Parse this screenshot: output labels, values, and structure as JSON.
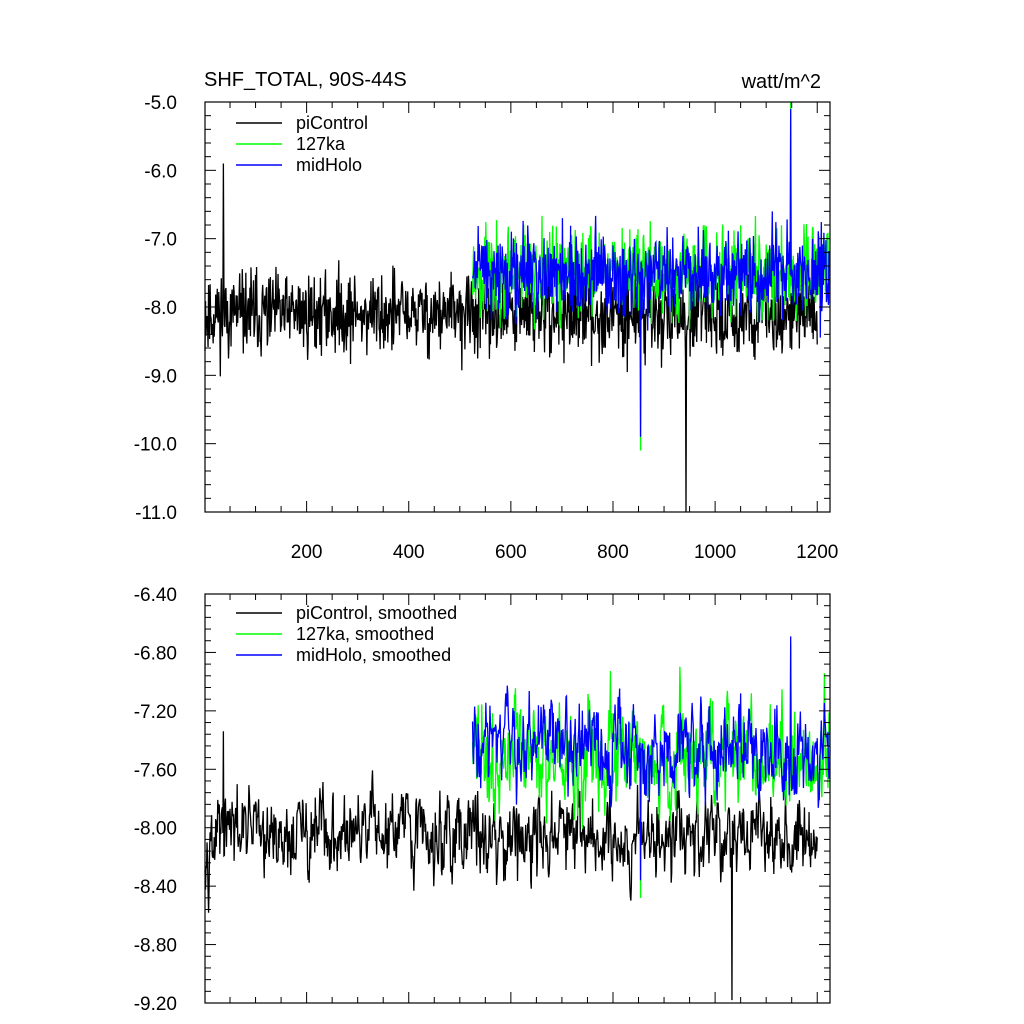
{
  "chart_data": [
    {
      "type": "line",
      "title": "SHF_TOTAL, 90S-44S",
      "units": "watt/m^2",
      "xlim": [
        1,
        1225
      ],
      "ylim": [
        -11.0,
        -5.0
      ],
      "xticks": [
        200,
        400,
        600,
        800,
        1000,
        1200
      ],
      "xtick_labels": [
        "200",
        "400",
        "600",
        "800",
        "1000",
        "1200"
      ],
      "yticks": [
        -5.0,
        -6.0,
        -7.0,
        -8.0,
        -9.0,
        -10.0,
        -11.0
      ],
      "ytick_labels": [
        "-5.0",
        "-6.0",
        "-7.0",
        "-8.0",
        "-9.0",
        "-10.0",
        "-11.0"
      ],
      "grid": false,
      "legend_position": "top-left",
      "series": [
        {
          "name": "piControl",
          "color": "#000000",
          "x_start": 1,
          "x_end": 1200,
          "mean": -8.1,
          "amplitude": 0.55,
          "min": -11.0,
          "max": -5.9
        },
        {
          "name": "127ka",
          "color": "#00ff00",
          "x_start": 525,
          "x_end": 1225,
          "mean": -7.5,
          "amplitude": 0.6,
          "min": -10.1,
          "max": -5.0
        },
        {
          "name": "midHolo",
          "color": "#0000ff",
          "x_start": 525,
          "x_end": 1225,
          "mean": -7.5,
          "amplitude": 0.55,
          "min": -9.9,
          "max": -5.1
        }
      ]
    },
    {
      "type": "line",
      "title": "",
      "xlim": [
        1,
        1225
      ],
      "ylim": [
        -9.2,
        -6.4
      ],
      "xticks": [
        200,
        400,
        600,
        800,
        1000,
        1200
      ],
      "yticks": [
        -6.4,
        -6.8,
        -7.2,
        -7.6,
        -8.0,
        -8.4,
        -8.8,
        -9.2
      ],
      "ytick_labels": [
        "-6.40",
        "-6.80",
        "-7.20",
        "-7.60",
        "-8.00",
        "-8.40",
        "-8.80",
        "-9.20"
      ],
      "grid": false,
      "legend_position": "top-left",
      "series": [
        {
          "name": "piControl, smoothed",
          "color": "#000000",
          "x_start": 1,
          "x_end": 1200,
          "mean": -8.05,
          "amplitude": 0.17,
          "min": -9.18,
          "max": -7.34
        },
        {
          "name": "127ka, smoothed",
          "color": "#00ff00",
          "x_start": 525,
          "x_end": 1225,
          "mean": -7.5,
          "amplitude": 0.22,
          "min": -8.48,
          "max": -6.74
        },
        {
          "name": "midHolo, smoothed",
          "color": "#0000ff",
          "x_start": 525,
          "x_end": 1225,
          "mean": -7.45,
          "amplitude": 0.18,
          "min": -8.36,
          "max": -6.69
        }
      ]
    }
  ]
}
